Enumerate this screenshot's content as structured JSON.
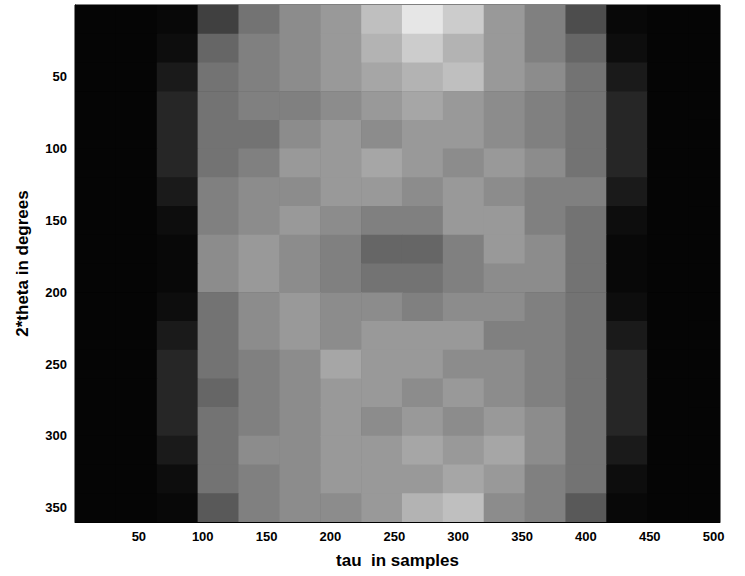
{
  "chart_data": {
    "type": "heatmap",
    "xlabel": "tau  in samples",
    "ylabel": "2*theta in degrees",
    "xlim": [
      0,
      505
    ],
    "ylim": [
      0,
      360
    ],
    "xticks": [
      50,
      100,
      150,
      200,
      250,
      300,
      350,
      400,
      450,
      500
    ],
    "yticks": [
      50,
      100,
      150,
      200,
      250,
      300,
      350
    ],
    "grid": false,
    "zlim": [
      0,
      1
    ],
    "x_edges": [
      0,
      32,
      64,
      96,
      128,
      160,
      192,
      224,
      256,
      288,
      320,
      352,
      384,
      416,
      448,
      480,
      512
    ],
    "y_edges": [
      0,
      20,
      40,
      60,
      80,
      100,
      120,
      140,
      160,
      180,
      200,
      220,
      240,
      260,
      280,
      300,
      320,
      340,
      360
    ],
    "cells": [
      [
        0.02,
        0.02,
        0.03,
        0.25,
        0.45,
        0.55,
        0.6,
        0.75,
        0.9,
        0.8,
        0.6,
        0.5,
        0.3,
        0.03,
        0.02,
        0.02
      ],
      [
        0.02,
        0.02,
        0.05,
        0.4,
        0.5,
        0.55,
        0.6,
        0.7,
        0.8,
        0.7,
        0.6,
        0.5,
        0.4,
        0.05,
        0.02,
        0.02
      ],
      [
        0.02,
        0.02,
        0.1,
        0.45,
        0.5,
        0.55,
        0.6,
        0.65,
        0.7,
        0.75,
        0.6,
        0.55,
        0.45,
        0.1,
        0.02,
        0.02
      ],
      [
        0.02,
        0.02,
        0.15,
        0.45,
        0.5,
        0.5,
        0.55,
        0.6,
        0.65,
        0.6,
        0.55,
        0.5,
        0.45,
        0.15,
        0.02,
        0.02
      ],
      [
        0.02,
        0.02,
        0.15,
        0.45,
        0.45,
        0.55,
        0.6,
        0.55,
        0.6,
        0.6,
        0.55,
        0.5,
        0.45,
        0.15,
        0.02,
        0.02
      ],
      [
        0.02,
        0.02,
        0.15,
        0.45,
        0.5,
        0.6,
        0.6,
        0.65,
        0.6,
        0.55,
        0.6,
        0.55,
        0.45,
        0.15,
        0.02,
        0.02
      ],
      [
        0.02,
        0.02,
        0.1,
        0.5,
        0.55,
        0.55,
        0.6,
        0.6,
        0.55,
        0.6,
        0.55,
        0.5,
        0.5,
        0.1,
        0.02,
        0.02
      ],
      [
        0.02,
        0.02,
        0.05,
        0.5,
        0.55,
        0.6,
        0.55,
        0.5,
        0.5,
        0.6,
        0.6,
        0.5,
        0.45,
        0.05,
        0.02,
        0.02
      ],
      [
        0.02,
        0.02,
        0.03,
        0.55,
        0.6,
        0.55,
        0.5,
        0.4,
        0.4,
        0.5,
        0.6,
        0.55,
        0.45,
        0.03,
        0.02,
        0.02
      ],
      [
        0.02,
        0.02,
        0.03,
        0.55,
        0.6,
        0.55,
        0.5,
        0.45,
        0.45,
        0.5,
        0.55,
        0.55,
        0.45,
        0.03,
        0.02,
        0.02
      ],
      [
        0.02,
        0.02,
        0.05,
        0.45,
        0.55,
        0.6,
        0.55,
        0.55,
        0.5,
        0.55,
        0.55,
        0.5,
        0.45,
        0.05,
        0.02,
        0.02
      ],
      [
        0.02,
        0.02,
        0.1,
        0.45,
        0.55,
        0.6,
        0.55,
        0.6,
        0.6,
        0.6,
        0.5,
        0.5,
        0.45,
        0.1,
        0.02,
        0.02
      ],
      [
        0.02,
        0.02,
        0.15,
        0.45,
        0.5,
        0.55,
        0.65,
        0.6,
        0.6,
        0.55,
        0.55,
        0.5,
        0.45,
        0.15,
        0.02,
        0.02
      ],
      [
        0.02,
        0.02,
        0.15,
        0.4,
        0.5,
        0.55,
        0.6,
        0.6,
        0.55,
        0.6,
        0.55,
        0.5,
        0.45,
        0.15,
        0.02,
        0.02
      ],
      [
        0.02,
        0.02,
        0.15,
        0.45,
        0.5,
        0.55,
        0.6,
        0.55,
        0.6,
        0.55,
        0.6,
        0.55,
        0.45,
        0.15,
        0.02,
        0.02
      ],
      [
        0.02,
        0.02,
        0.1,
        0.45,
        0.55,
        0.55,
        0.6,
        0.6,
        0.65,
        0.6,
        0.65,
        0.55,
        0.45,
        0.1,
        0.02,
        0.02
      ],
      [
        0.02,
        0.02,
        0.05,
        0.45,
        0.5,
        0.55,
        0.6,
        0.6,
        0.6,
        0.65,
        0.6,
        0.5,
        0.45,
        0.05,
        0.02,
        0.02
      ],
      [
        0.02,
        0.02,
        0.03,
        0.35,
        0.5,
        0.55,
        0.55,
        0.6,
        0.7,
        0.75,
        0.55,
        0.5,
        0.35,
        0.03,
        0.02,
        0.02
      ]
    ]
  }
}
